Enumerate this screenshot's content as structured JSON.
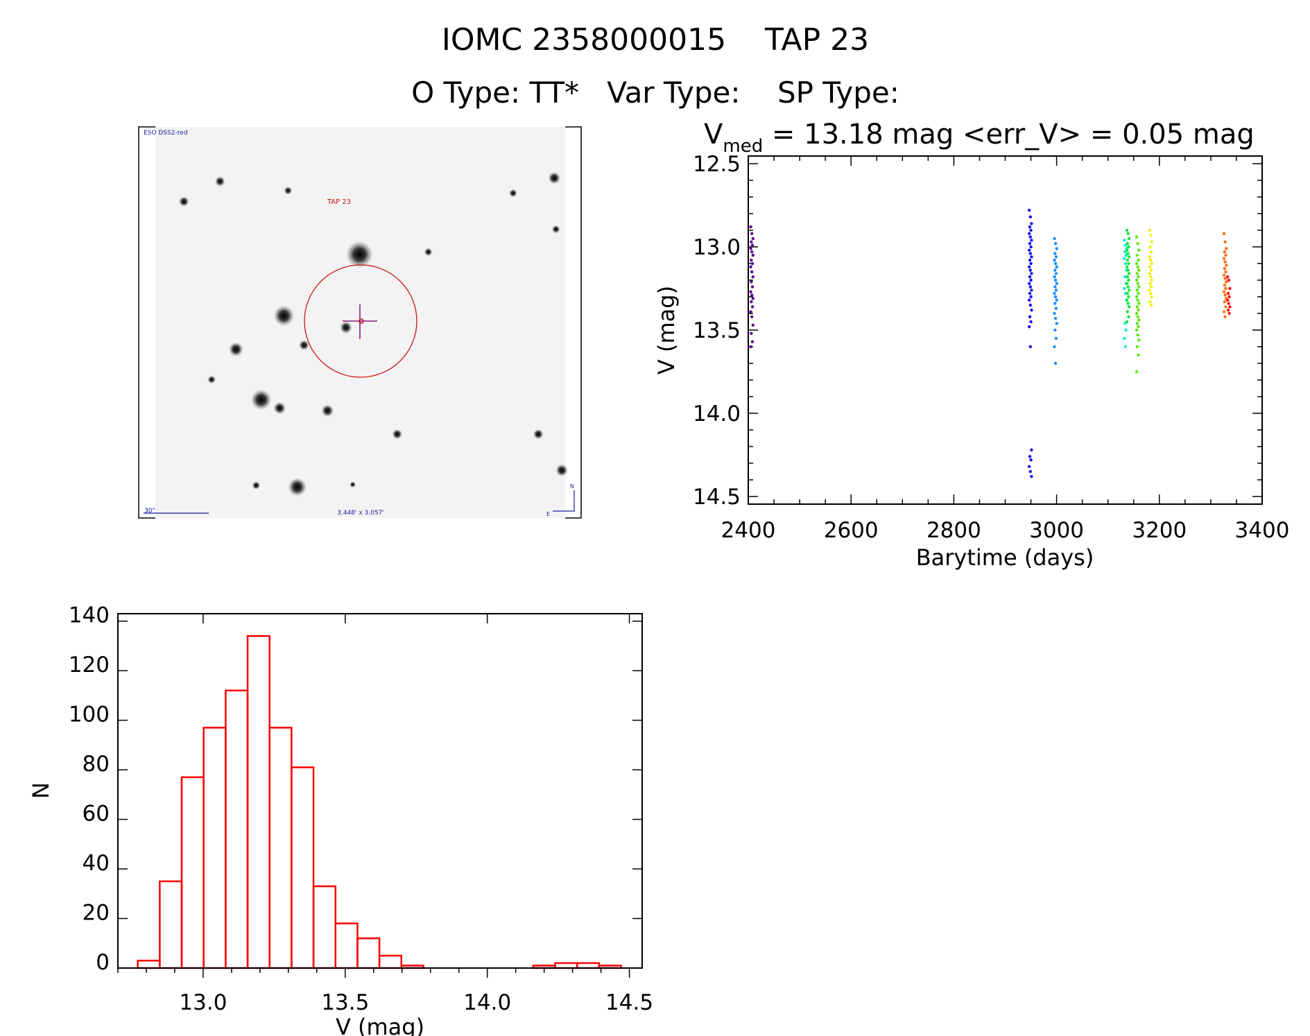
{
  "header": {
    "title": "IOMC 2358000015    TAP 23",
    "subtitle": "O Type: TT*   Var Type:    SP Type:"
  },
  "image_panel": {
    "survey_label": "ESO DSS2-red",
    "target_label": "TAP 23",
    "scale_label": "30\"",
    "field_size_label": "3.448' x 3.057'",
    "north_label": "N",
    "east_label": "E",
    "colors": {
      "survey": "#1a1aa0",
      "target": "#cc1010",
      "crosshair": "#8a1a8a"
    }
  },
  "chart_data": [
    {
      "type": "scatter",
      "title_prefix": "V",
      "title_sub": "med",
      "title_rest": " = 13.18 mag <err_V> = 0.05 mag",
      "xlabel": "Barytime (days)",
      "ylabel": "V (mag)",
      "xlim": [
        2400,
        3400
      ],
      "ylim": [
        12.454,
        14.546
      ],
      "y_inverted": true,
      "xticks": [
        "2400",
        "2600",
        "2800",
        "3000",
        "3200",
        "3400"
      ],
      "yticks": [
        "12.5",
        "13.0",
        "13.5",
        "14.0",
        "14.5"
      ],
      "groups": [
        {
          "t": 2407,
          "color": "#5a0a8a",
          "v": [
            12.88,
            12.92,
            12.95,
            12.97,
            12.99,
            13.01,
            13.03,
            13.05,
            13.08,
            13.1,
            13.12,
            13.15,
            13.18,
            13.21,
            13.24,
            13.27,
            13.29,
            13.31,
            13.33,
            13.36,
            13.39,
            13.42,
            13.47,
            13.52,
            13.57,
            13.6
          ]
        },
        {
          "t": 2949,
          "color": "#1010f0",
          "v": [
            12.78,
            12.82,
            12.86,
            12.88,
            12.9,
            12.92,
            12.94,
            12.96,
            12.98,
            13.0,
            13.02,
            13.04,
            13.06,
            13.08,
            13.1,
            13.12,
            13.14,
            13.16,
            13.18,
            13.2,
            13.22,
            13.24,
            13.26,
            13.28,
            13.3,
            13.32,
            13.35,
            13.38,
            13.42,
            13.45,
            13.48,
            13.6,
            14.22,
            14.26,
            14.28,
            14.32,
            14.35,
            14.38
          ]
        },
        {
          "t": 2998,
          "color": "#1a8cff",
          "v": [
            12.95,
            12.98,
            13.01,
            13.04,
            13.06,
            13.08,
            13.1,
            13.12,
            13.14,
            13.16,
            13.18,
            13.2,
            13.22,
            13.24,
            13.26,
            13.28,
            13.3,
            13.32,
            13.34,
            13.37,
            13.4,
            13.43,
            13.46,
            13.5,
            13.55,
            13.6,
            13.7
          ]
        },
        {
          "t": 3134,
          "color": "#18e8d8",
          "v": [
            12.96,
            12.99,
            13.01,
            13.03,
            13.05,
            13.07,
            13.1,
            13.14,
            13.18,
            13.22,
            13.25,
            13.28,
            13.32,
            13.46,
            13.5,
            13.55,
            13.6
          ]
        },
        {
          "t": 3139,
          "color": "#10e830",
          "v": [
            12.9,
            12.92,
            12.95,
            12.98,
            13.0,
            13.02,
            13.04,
            13.06,
            13.08,
            13.1,
            13.12,
            13.14,
            13.16,
            13.18,
            13.2,
            13.22,
            13.24,
            13.26,
            13.28,
            13.3,
            13.32,
            13.34,
            13.36,
            13.39,
            13.42,
            13.45
          ]
        },
        {
          "t": 3158,
          "color": "#60e810",
          "v": [
            12.94,
            12.98,
            13.02,
            13.05,
            13.08,
            13.1,
            13.12,
            13.14,
            13.16,
            13.18,
            13.2,
            13.22,
            13.24,
            13.26,
            13.28,
            13.3,
            13.32,
            13.34,
            13.36,
            13.38,
            13.4,
            13.42,
            13.44,
            13.46,
            13.48,
            13.5,
            13.53,
            13.56,
            13.6,
            13.65,
            13.75
          ]
        },
        {
          "t": 3183,
          "color": "#f0f010",
          "v": [
            12.9,
            12.93,
            12.97,
            13.0,
            13.03,
            13.06,
            13.08,
            13.1,
            13.12,
            13.14,
            13.16,
            13.18,
            13.2,
            13.22,
            13.24,
            13.26,
            13.28,
            13.3,
            13.33,
            13.35
          ]
        },
        {
          "t": 3328,
          "color": "#ff7010",
          "v": [
            12.92,
            12.97,
            13.01,
            13.03,
            13.05,
            13.07,
            13.09,
            13.11,
            13.13,
            13.15,
            13.17,
            13.19,
            13.21,
            13.23,
            13.25,
            13.27,
            13.29,
            13.31,
            13.33,
            13.36,
            13.39,
            13.42
          ]
        },
        {
          "t": 3335,
          "color": "#ff1010",
          "v": [
            13.18,
            13.2,
            13.25,
            13.28,
            13.3,
            13.32,
            13.34,
            13.36,
            13.38,
            13.4
          ]
        }
      ]
    },
    {
      "type": "bar",
      "subtype": "histogram",
      "xlabel": "V (mag)",
      "ylabel": "N",
      "xlim": [
        12.7,
        14.545
      ],
      "ylim": [
        0,
        143
      ],
      "xticks": [
        "13.0",
        "13.5",
        "14.0",
        "14.5"
      ],
      "yticks": [
        "0",
        "20",
        "40",
        "60",
        "80",
        "100",
        "120",
        "140"
      ],
      "bin_start": 12.77,
      "bin_width": 0.0773,
      "counts": [
        3,
        35,
        77,
        97,
        112,
        134,
        97,
        81,
        33,
        18,
        12,
        5,
        1,
        0,
        0,
        0,
        0,
        0,
        1,
        2,
        2,
        1
      ],
      "color": "#ff0000"
    }
  ]
}
